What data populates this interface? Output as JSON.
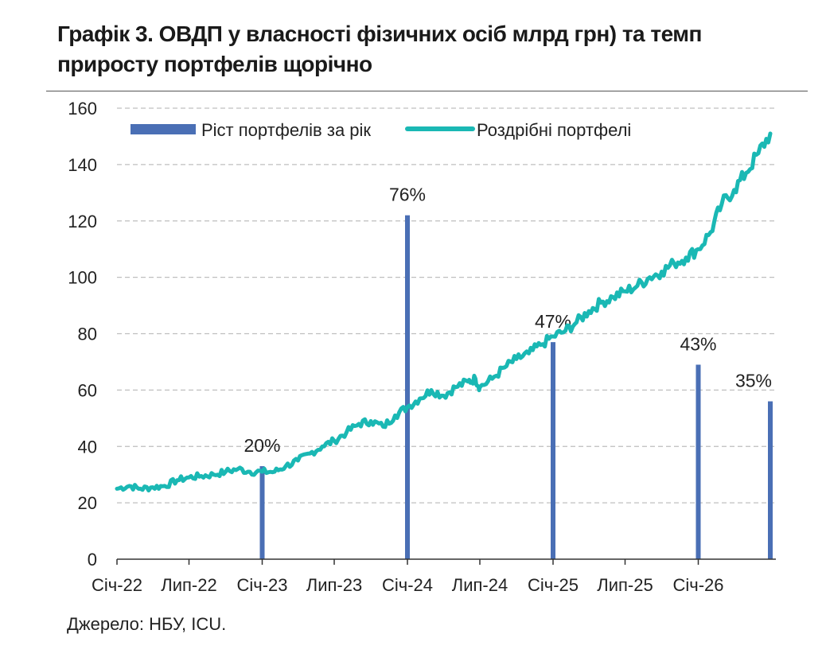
{
  "title": "Графік 3. ОВДП у власності фізичних осіб млрд грн) та темп приросту портфелів щорічно",
  "source": "Джерело: НБУ, ICU.",
  "colors": {
    "bars": "#4a6fb5",
    "line": "#1ab8b4",
    "grid": "#bfbfbf",
    "axis": "#333333"
  },
  "chart_data": {
    "type": "bar+line",
    "legend_position": "top-left",
    "grid": true,
    "xlabel": "",
    "ylabel": "",
    "ylim": [
      0,
      160
    ],
    "yticks": [
      0,
      20,
      40,
      60,
      80,
      100,
      120,
      140,
      160
    ],
    "xtick_labels": [
      "Січ-22",
      "Лип-22",
      "Січ-23",
      "Лип-23",
      "Січ-24",
      "Лип-24",
      "Січ-25",
      "Лип-25",
      "Січ-26"
    ],
    "xlim": [
      "2022-01-01",
      "2026-07-15"
    ],
    "bar_series": {
      "name": "Ріст портфелів за рік",
      "points": [
        {
          "x": "2023-01-01",
          "value": 33,
          "label": "20%"
        },
        {
          "x": "2024-01-01",
          "value": 122,
          "label": "76%"
        },
        {
          "x": "2025-01-01",
          "value": 77,
          "label": "47%"
        },
        {
          "x": "2026-01-01",
          "value": 69,
          "label": "43%"
        },
        {
          "x": "2026-07-01",
          "value": 56,
          "label": "35%"
        }
      ]
    },
    "line_series": {
      "name": "Роздрібні портфелі",
      "points": [
        [
          "2022-01-01",
          25
        ],
        [
          "2022-02-01",
          26
        ],
        [
          "2022-03-01",
          25
        ],
        [
          "2022-04-01",
          25.5
        ],
        [
          "2022-05-01",
          26
        ],
        [
          "2022-06-01",
          28
        ],
        [
          "2022-07-01",
          29
        ],
        [
          "2022-08-01",
          29.5
        ],
        [
          "2022-09-01",
          30
        ],
        [
          "2022-10-01",
          31
        ],
        [
          "2022-11-01",
          32
        ],
        [
          "2022-12-01",
          31
        ],
        [
          "2023-01-01",
          31
        ],
        [
          "2023-02-01",
          31
        ],
        [
          "2023-03-01",
          33
        ],
        [
          "2023-04-01",
          35
        ],
        [
          "2023-05-01",
          37.5
        ],
        [
          "2023-06-01",
          40
        ],
        [
          "2023-07-01",
          42
        ],
        [
          "2023-08-01",
          45
        ],
        [
          "2023-09-01",
          48
        ],
        [
          "2023-10-01",
          49
        ],
        [
          "2023-11-01",
          47
        ],
        [
          "2023-12-01",
          51
        ],
        [
          "2024-01-01",
          54
        ],
        [
          "2024-02-01",
          57
        ],
        [
          "2024-03-01",
          60
        ],
        [
          "2024-04-01",
          58
        ],
        [
          "2024-05-01",
          61
        ],
        [
          "2024-06-01",
          63
        ],
        [
          "2024-06-20",
          64
        ],
        [
          "2024-07-01",
          61
        ],
        [
          "2024-08-01",
          64
        ],
        [
          "2024-09-01",
          68
        ],
        [
          "2024-10-01",
          71
        ],
        [
          "2024-11-01",
          73
        ],
        [
          "2024-12-01",
          76
        ],
        [
          "2025-01-01",
          79
        ],
        [
          "2025-02-01",
          81
        ],
        [
          "2025-03-01",
          84
        ],
        [
          "2025-04-01",
          88
        ],
        [
          "2025-05-01",
          91
        ],
        [
          "2025-06-01",
          93
        ],
        [
          "2025-07-01",
          95
        ],
        [
          "2025-08-01",
          97
        ],
        [
          "2025-09-01",
          100
        ],
        [
          "2025-10-01",
          102
        ],
        [
          "2025-11-01",
          105
        ],
        [
          "2025-12-01",
          107
        ],
        [
          "2026-01-01",
          110
        ],
        [
          "2026-02-01",
          116
        ],
        [
          "2026-03-01",
          126
        ],
        [
          "2026-04-01",
          131
        ],
        [
          "2026-05-01",
          137
        ],
        [
          "2026-06-01",
          144
        ],
        [
          "2026-07-01",
          151
        ]
      ]
    }
  }
}
